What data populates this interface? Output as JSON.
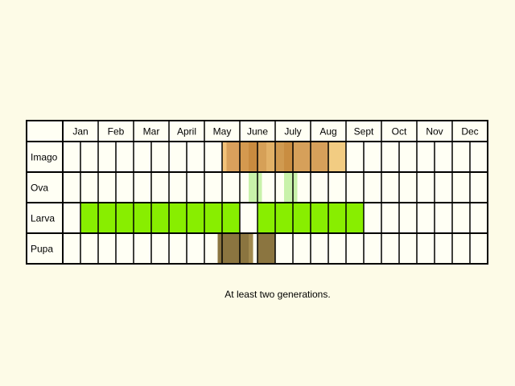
{
  "chart_data": {
    "type": "table",
    "title": "",
    "months": [
      "Jan",
      "Feb",
      "Mar",
      "April",
      "May",
      "June",
      "July",
      "Aug",
      "Sept",
      "Oct",
      "Nov",
      "Dec"
    ],
    "columns_per_month": 2,
    "stages": [
      {
        "name": "Imago",
        "segments": [
          {
            "start": 9.0,
            "end": 9.25,
            "color": "#f3c27a"
          },
          {
            "start": 9.25,
            "end": 10.0,
            "color": "#d9a05c"
          },
          {
            "start": 10.0,
            "end": 10.5,
            "color": "#d4994f"
          },
          {
            "start": 10.5,
            "end": 11.0,
            "color": "#c98b3f"
          },
          {
            "start": 11.0,
            "end": 11.5,
            "color": "#d6a057"
          },
          {
            "start": 11.5,
            "end": 12.0,
            "color": "#e2b167"
          },
          {
            "start": 12.0,
            "end": 12.5,
            "color": "#d09a50"
          },
          {
            "start": 12.5,
            "end": 13.0,
            "color": "#c98d41"
          },
          {
            "start": 13.0,
            "end": 15.0,
            "color": "#d6a05a"
          },
          {
            "start": 15.0,
            "end": 16.0,
            "color": "#f2cc82"
          }
        ]
      },
      {
        "name": "Ova",
        "segments": [
          {
            "start": 10.5,
            "end": 11.25,
            "color": "#c8f2aa"
          },
          {
            "start": 12.5,
            "end": 13.25,
            "color": "#c8f2aa"
          }
        ]
      },
      {
        "name": "Larva",
        "segments": [
          {
            "start": 1.0,
            "end": 10.0,
            "color": "#88ee00"
          },
          {
            "start": 11.0,
            "end": 17.0,
            "color": "#88ee00"
          }
        ]
      },
      {
        "name": "Pupa",
        "segments": [
          {
            "start": 8.75,
            "end": 10.5,
            "color": "#8b7540"
          },
          {
            "start": 10.5,
            "end": 10.75,
            "color": "#a1894e"
          },
          {
            "start": 11.0,
            "end": 12.0,
            "color": "#8b7540"
          }
        ]
      }
    ]
  },
  "caption": "At least two generations."
}
